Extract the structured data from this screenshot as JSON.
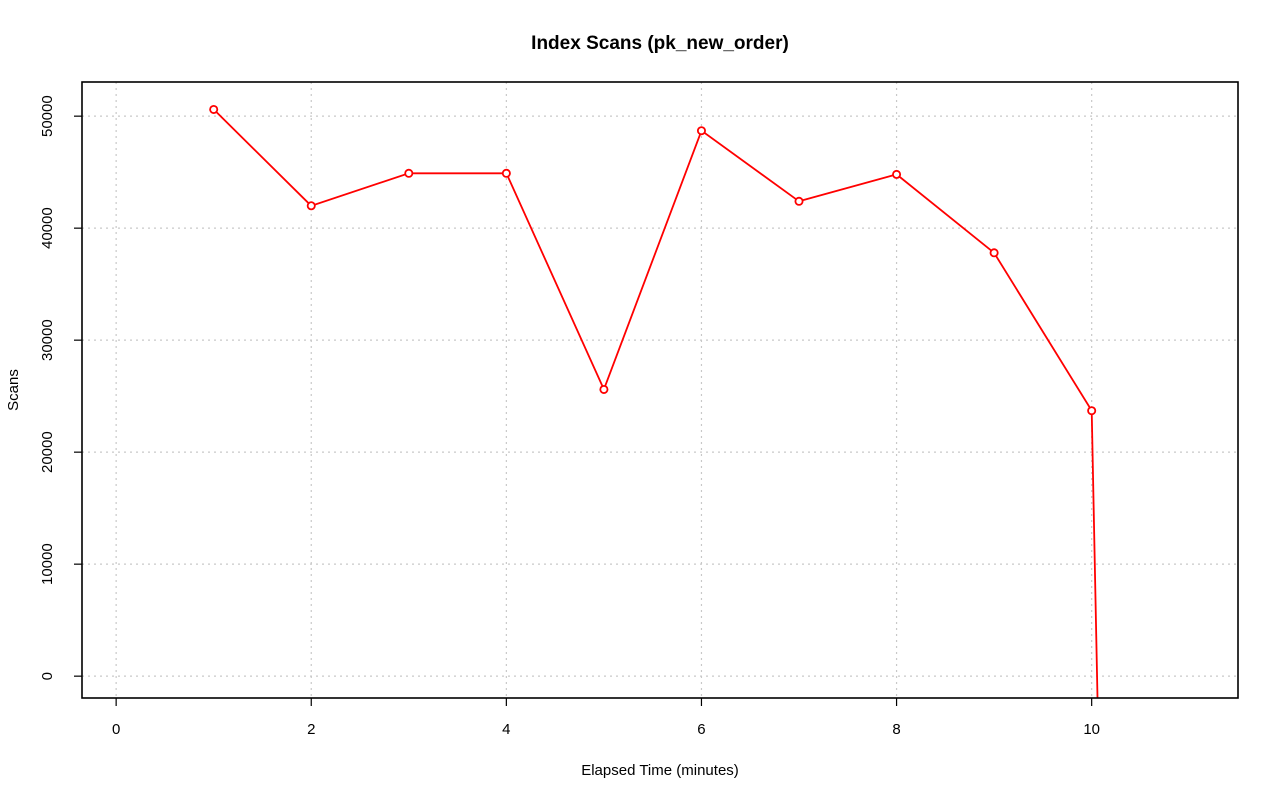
{
  "chart_data": {
    "type": "line",
    "title": "Index Scans (pk_new_order)",
    "xlabel": "Elapsed Time (minutes)",
    "ylabel": "Scans",
    "xlim": [
      -0.35,
      11.5
    ],
    "ylim": [
      -1950,
      53050
    ],
    "x_ticks": [
      0,
      2,
      4,
      6,
      8,
      10
    ],
    "y_ticks": [
      0,
      10000,
      20000,
      30000,
      40000,
      50000
    ],
    "x_tick_labels": [
      "0",
      "2",
      "4",
      "6",
      "8",
      "10"
    ],
    "y_tick_labels": [
      "0",
      "10000",
      "20000",
      "30000",
      "40000",
      "50000"
    ],
    "grid": true,
    "series": [
      {
        "color": "#ff0000",
        "x": [
          1,
          2,
          3,
          4,
          5,
          6,
          7,
          8,
          9,
          10
        ],
        "y": [
          50600,
          42000,
          44900,
          44900,
          25600,
          48700,
          42400,
          44800,
          37800,
          23700
        ],
        "trailing_line_to": {
          "x": 10.06,
          "y": -1950
        }
      }
    ]
  }
}
